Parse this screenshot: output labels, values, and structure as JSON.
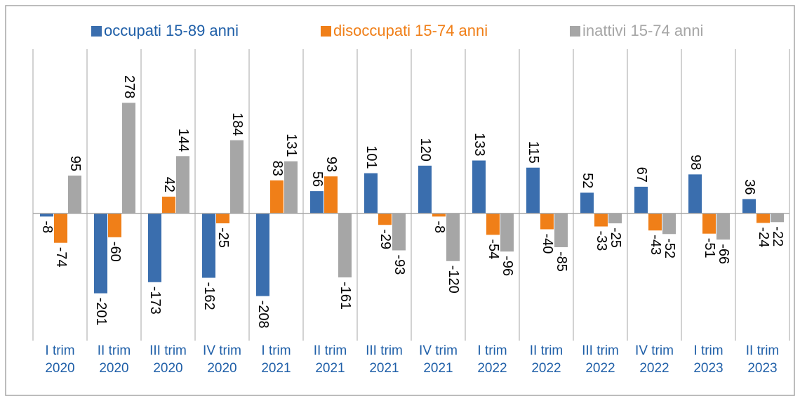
{
  "chart_data": {
    "type": "bar",
    "categories": [
      "I trim\n2020",
      "II trim\n2020",
      "III trim\n2020",
      "IV trim\n2020",
      "I trim\n2021",
      "II trim\n2021",
      "III trim\n2021",
      "IV trim\n2021",
      "I trim\n2022",
      "II trim\n2022",
      "III trim\n2022",
      "IV trim\n2022",
      "I trim\n2023",
      "II trim\n2023"
    ],
    "series": [
      {
        "name": "occupati 15-89 anni",
        "color": "#3a6eae",
        "values": [
          -8,
          -201,
          -173,
          -162,
          -208,
          56,
          101,
          120,
          133,
          115,
          52,
          67,
          98,
          36
        ]
      },
      {
        "name": "disoccupati 15-74 anni",
        "color": "#f07f18",
        "values": [
          -74,
          -60,
          42,
          -25,
          83,
          93,
          -29,
          -8,
          -54,
          -40,
          -33,
          -43,
          -51,
          -24
        ]
      },
      {
        "name": "inattivi 15-74 anni",
        "color": "#a6a6a6",
        "values": [
          95,
          278,
          144,
          184,
          131,
          -161,
          -93,
          -120,
          -96,
          -85,
          -25,
          -52,
          -66,
          -22
        ]
      }
    ],
    "ylim": [
      -320,
      413
    ],
    "legend": "top"
  }
}
